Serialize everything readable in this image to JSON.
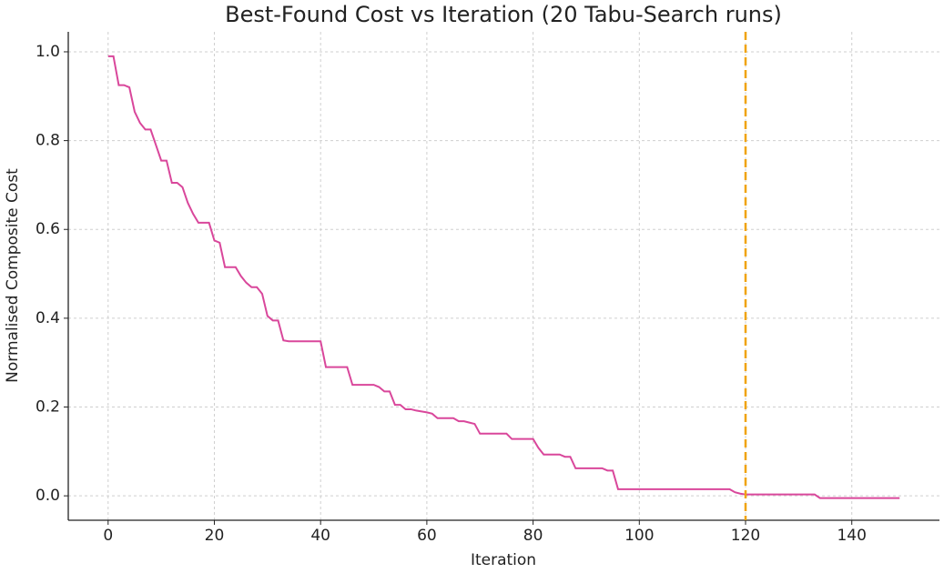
{
  "chart_data": {
    "type": "line",
    "title": "Best-Found Cost vs Iteration (20 Tabu-Search runs)",
    "xlabel": "Iteration",
    "ylabel": "Normalised Composite Cost",
    "x": [
      0,
      1,
      2,
      3,
      4,
      5,
      6,
      7,
      8,
      9,
      10,
      11,
      12,
      13,
      14,
      15,
      16,
      17,
      18,
      19,
      20,
      21,
      22,
      23,
      24,
      25,
      26,
      27,
      28,
      29,
      30,
      31,
      32,
      33,
      34,
      35,
      36,
      37,
      38,
      39,
      40,
      41,
      42,
      43,
      44,
      45,
      46,
      47,
      48,
      49,
      50,
      51,
      52,
      53,
      54,
      55,
      56,
      57,
      58,
      59,
      60,
      61,
      62,
      63,
      64,
      65,
      66,
      67,
      68,
      69,
      70,
      71,
      72,
      73,
      74,
      75,
      76,
      77,
      78,
      79,
      80,
      81,
      82,
      83,
      84,
      85,
      86,
      87,
      88,
      89,
      90,
      91,
      92,
      93,
      94,
      95,
      96,
      97,
      98,
      99,
      100,
      101,
      102,
      103,
      104,
      105,
      106,
      107,
      108,
      109,
      110,
      111,
      112,
      113,
      114,
      115,
      116,
      117,
      118,
      119,
      120,
      121,
      122,
      123,
      124,
      125,
      126,
      127,
      128,
      129,
      130,
      131,
      132,
      133,
      134,
      135,
      136,
      137,
      138,
      139,
      140,
      141,
      142,
      143,
      144,
      145,
      146,
      147,
      148,
      149
    ],
    "series": [
      {
        "color": "#d9479b",
        "values": [
          0.99,
          0.99,
          0.925,
          0.925,
          0.92,
          0.865,
          0.84,
          0.825,
          0.825,
          0.79,
          0.755,
          0.755,
          0.705,
          0.705,
          0.695,
          0.66,
          0.635,
          0.615,
          0.615,
          0.615,
          0.575,
          0.57,
          0.515,
          0.515,
          0.515,
          0.495,
          0.48,
          0.47,
          0.47,
          0.455,
          0.405,
          0.395,
          0.395,
          0.35,
          0.348,
          0.348,
          0.348,
          0.348,
          0.348,
          0.348,
          0.348,
          0.29,
          0.29,
          0.29,
          0.29,
          0.29,
          0.25,
          0.25,
          0.25,
          0.25,
          0.25,
          0.245,
          0.235,
          0.235,
          0.205,
          0.205,
          0.195,
          0.195,
          0.192,
          0.19,
          0.188,
          0.185,
          0.175,
          0.175,
          0.175,
          0.175,
          0.168,
          0.168,
          0.165,
          0.162,
          0.14,
          0.14,
          0.14,
          0.14,
          0.14,
          0.14,
          0.128,
          0.128,
          0.128,
          0.128,
          0.128,
          0.108,
          0.093,
          0.093,
          0.093,
          0.093,
          0.088,
          0.088,
          0.062,
          0.062,
          0.062,
          0.062,
          0.062,
          0.062,
          0.057,
          0.057,
          0.015,
          0.015,
          0.015,
          0.015,
          0.015,
          0.015,
          0.015,
          0.015,
          0.015,
          0.015,
          0.015,
          0.015,
          0.015,
          0.015,
          0.015,
          0.015,
          0.015,
          0.015,
          0.015,
          0.015,
          0.015,
          0.015,
          0.008,
          0.005,
          0.003,
          0.003,
          0.003,
          0.003,
          0.003,
          0.003,
          0.003,
          0.003,
          0.003,
          0.003,
          0.003,
          0.003,
          0.003,
          0.003,
          -0.005,
          -0.005,
          -0.005,
          -0.005,
          -0.005,
          -0.005,
          -0.005,
          -0.005,
          -0.005,
          -0.005,
          -0.005,
          -0.005,
          -0.005,
          -0.005,
          -0.005,
          -0.005
        ]
      }
    ],
    "vline": {
      "x": 120,
      "color": "#f0a30a"
    },
    "xlim": [
      -7.5,
      156.5
    ],
    "ylim": [
      -0.055,
      1.045
    ],
    "xticks": [
      0,
      20,
      40,
      60,
      80,
      100,
      120,
      140
    ],
    "yticks": [
      {
        "value": 0,
        "label": "0.0"
      },
      {
        "value": 0.2,
        "label": "0.2"
      },
      {
        "value": 0.4,
        "label": "0.4"
      },
      {
        "value": 0.6,
        "label": "0.6"
      },
      {
        "value": 0.8,
        "label": "0.8"
      },
      {
        "value": 1,
        "label": "1.0"
      }
    ],
    "grid": true
  }
}
